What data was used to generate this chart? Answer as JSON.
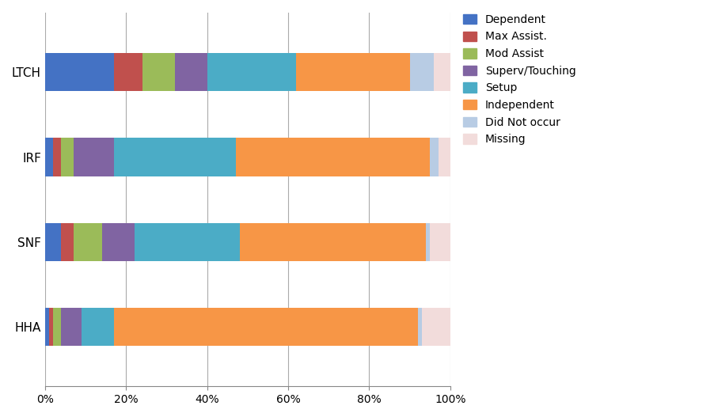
{
  "categories": [
    "LTCH",
    "IRF",
    "SNF",
    "HHA"
  ],
  "series": [
    {
      "label": "Dependent",
      "color": "#4472C4",
      "values": [
        17,
        2,
        4,
        1
      ]
    },
    {
      "label": "Max Assist.",
      "color": "#C0504D",
      "values": [
        7,
        2,
        3,
        1
      ]
    },
    {
      "label": "Mod Assist",
      "color": "#9BBB59",
      "values": [
        8,
        3,
        7,
        2
      ]
    },
    {
      "label": "Superv/Touching",
      "color": "#8064A2",
      "values": [
        8,
        10,
        8,
        5
      ]
    },
    {
      "label": "Setup",
      "color": "#4BACC6",
      "values": [
        22,
        30,
        26,
        8
      ]
    },
    {
      "label": "Independent",
      "color": "#F79646",
      "values": [
        28,
        48,
        46,
        75
      ]
    },
    {
      "label": "Did Not occur",
      "color": "#B8CCE4",
      "values": [
        6,
        2,
        1,
        1
      ]
    },
    {
      "label": "Missing",
      "color": "#F2DCDB",
      "values": [
        4,
        3,
        5,
        7
      ]
    }
  ],
  "xlim": [
    0,
    100
  ],
  "xticks": [
    0,
    20,
    40,
    60,
    80,
    100
  ],
  "xticklabels": [
    "0%",
    "20%",
    "40%",
    "60%",
    "80%",
    "100%"
  ],
  "bar_height": 0.45,
  "figsize": [
    9.02,
    5.27
  ],
  "dpi": 100,
  "background_color": "#FFFFFF",
  "grid_color": "#AAAAAA",
  "legend_fontsize": 10,
  "tick_fontsize": 10,
  "cat_fontsize": 11
}
